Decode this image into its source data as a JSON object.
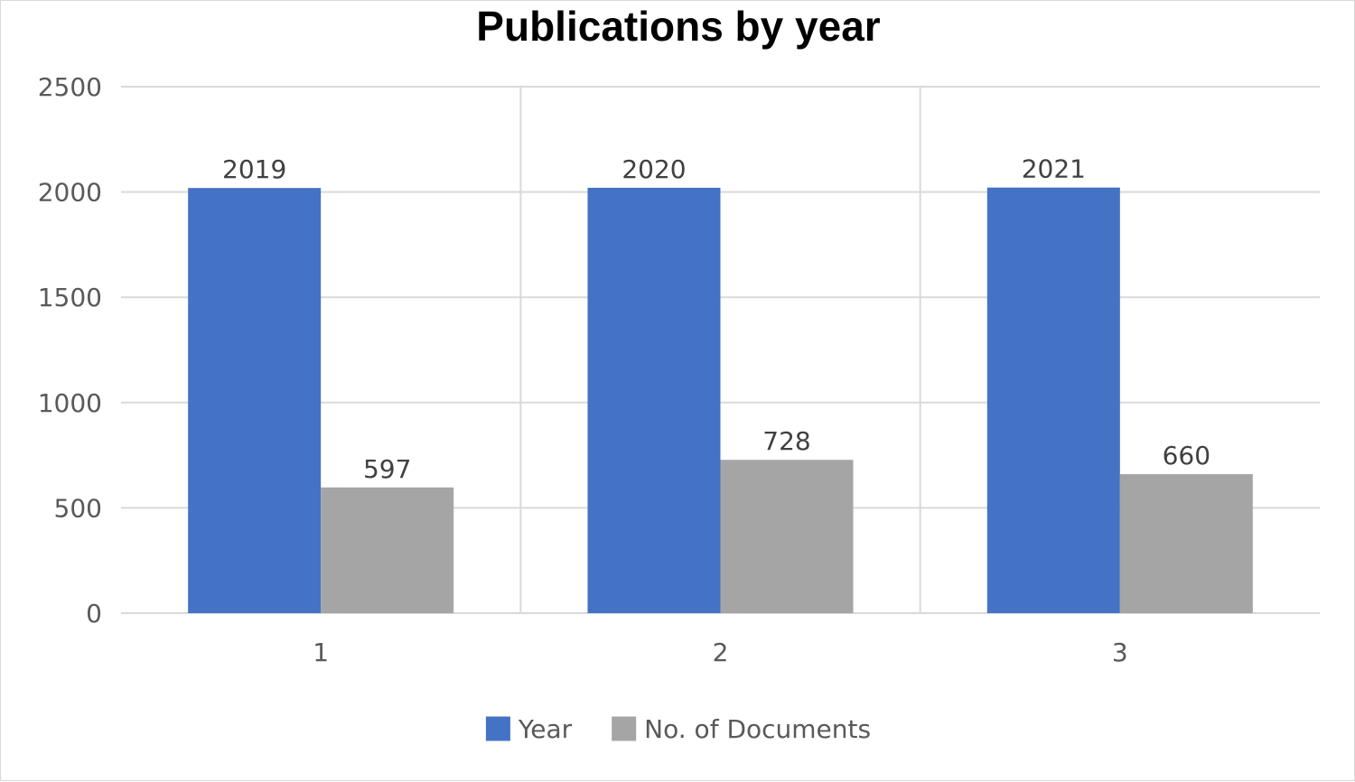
{
  "chart_data": {
    "type": "bar",
    "title": "Publications by year",
    "categories": [
      "1",
      "2",
      "3"
    ],
    "series": [
      {
        "name": "Year",
        "values": [
          2019,
          2020,
          2021
        ],
        "color": "#4472C4"
      },
      {
        "name": "No. of Documents",
        "values": [
          597,
          728,
          660
        ],
        "color": "#A5A5A5"
      }
    ],
    "ylim": [
      0,
      2500
    ],
    "yticks": [
      0,
      500,
      1000,
      1500,
      2000,
      2500
    ],
    "grid": true,
    "data_labels": true,
    "legend_position": "bottom"
  }
}
